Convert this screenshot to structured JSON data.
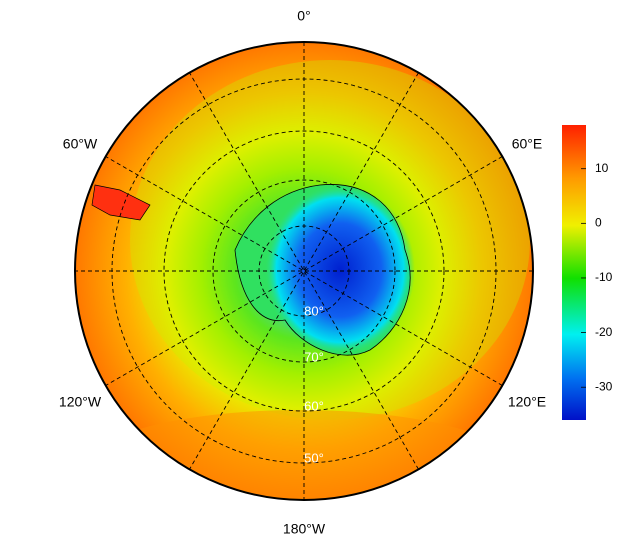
{
  "meridians": [
    "0°",
    "60°E",
    "120°E",
    "180°W",
    "120°W",
    "60°W"
  ],
  "parallels": [
    "80°",
    "70°",
    "60°",
    "50°"
  ],
  "colorbar": {
    "lim": [
      -36,
      18
    ],
    "ticks": [
      10,
      0,
      -10,
      -20,
      -30
    ]
  }
}
